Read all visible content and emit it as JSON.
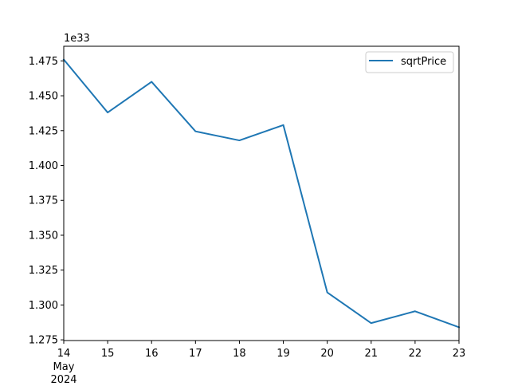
{
  "chart_data": {
    "type": "line",
    "title": "",
    "xlabel": "",
    "ylabel": "",
    "x_tick_labels": [
      "14",
      "15",
      "16",
      "17",
      "18",
      "19",
      "20",
      "21",
      "22",
      "23"
    ],
    "x_secondary_label": [
      "May",
      "2024"
    ],
    "y_offset_label": "1e33",
    "y_ticks": [
      "1.275",
      "1.300",
      "1.325",
      "1.350",
      "1.375",
      "1.400",
      "1.425",
      "1.450",
      "1.475"
    ],
    "ylim": [
      1.2745,
      1.4855
    ],
    "xlim": [
      "2024-05-14",
      "2024-05-23"
    ],
    "x": [
      "2024-05-14",
      "2024-05-15",
      "2024-05-16",
      "2024-05-17",
      "2024-05-18",
      "2024-05-19",
      "2024-05-20",
      "2024-05-21",
      "2024-05-22",
      "2024-05-23"
    ],
    "series": [
      {
        "name": "sqrtPrice",
        "color": "#1f77b4",
        "values": [
          1.476,
          1.438,
          1.46,
          1.4245,
          1.418,
          1.429,
          1.309,
          1.287,
          1.2955,
          1.284
        ]
      }
    ],
    "grid": false,
    "legend_position": "upper right"
  }
}
